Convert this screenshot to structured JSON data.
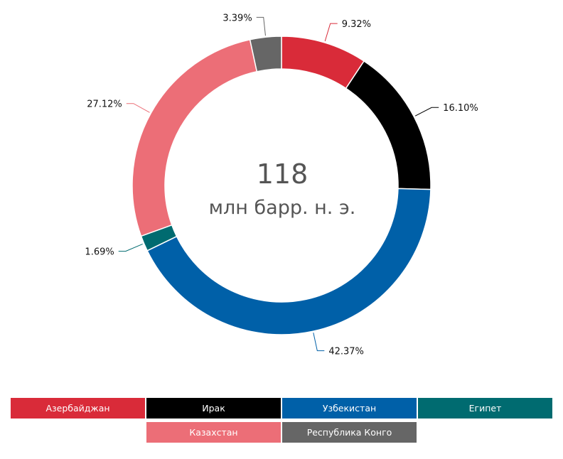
{
  "chart_data": {
    "type": "pie",
    "variant": "donut",
    "center": {
      "value": "118",
      "unit": "млн барр. н. э."
    },
    "series": [
      {
        "name": "Азербайджан",
        "value": 9.32,
        "label": "9.32%",
        "color": "#d92b39"
      },
      {
        "name": "Ирак",
        "value": 16.1,
        "label": "16.10%",
        "color": "#000000"
      },
      {
        "name": "Узбекистан",
        "value": 42.37,
        "label": "42.37%",
        "color": "#0060a8"
      },
      {
        "name": "Египет",
        "value": 1.69,
        "label": "1.69%",
        "color": "#006b70"
      },
      {
        "name": "Казахстан",
        "value": 27.12,
        "label": "27.12%",
        "color": "#ec6e77"
      },
      {
        "name": "Республика Конго",
        "value": 3.39,
        "label": "3.39%",
        "color": "#666666"
      }
    ],
    "legend_position": "bottom"
  }
}
